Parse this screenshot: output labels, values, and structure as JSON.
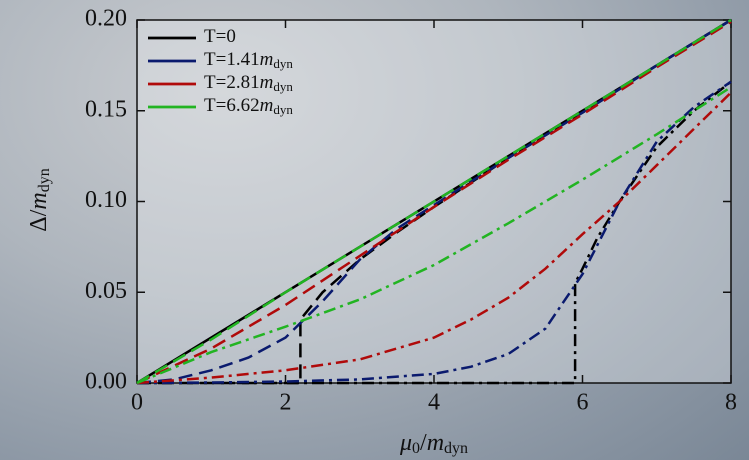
{
  "chart_data": {
    "type": "line",
    "xlabel": [
      "μ",
      "0",
      "/",
      "m",
      "dyn"
    ],
    "ylabel": [
      "Δ/",
      "m",
      "dyn"
    ],
    "xlim": [
      0,
      8
    ],
    "xticks": [
      0,
      2,
      4,
      6,
      8
    ],
    "ylim": [
      0,
      0.2
    ],
    "yticks": [
      {
        "value": 0,
        "label": "0.00"
      },
      {
        "value": 0.05,
        "label": "0.05"
      },
      {
        "value": 0.1,
        "label": "0.10"
      },
      {
        "value": 0.15,
        "label": "0.15"
      },
      {
        "value": 0.2,
        "label": "0.20"
      }
    ],
    "legend": "upper left",
    "series": [
      {
        "name": [
          "T=0"
        ],
        "color": "#000000",
        "curves": [
          {
            "dash": "solid",
            "x": [
              0,
              8
            ],
            "values": [
              0,
              0.2
            ]
          },
          {
            "dash": "dashed",
            "x": [
              0,
              2.2,
              2.2,
              2.5,
              3,
              3.5,
              4,
              5,
              6,
              7,
              8
            ],
            "values": [
              0,
              0,
              0.035,
              0.05,
              0.068,
              0.083,
              0.097,
              0.124,
              0.149,
              0.175,
              0.2
            ]
          },
          {
            "dash": "dashdot",
            "x": [
              0,
              5.9,
              5.9,
              6,
              6.2,
              6.5,
              7,
              7.5,
              8
            ],
            "values": [
              0,
              0,
              0.055,
              0.063,
              0.08,
              0.1,
              0.13,
              0.15,
              0.166
            ]
          }
        ]
      },
      {
        "name": [
          "T=1.41",
          "m",
          "dyn"
        ],
        "color": "#0a1a6e",
        "curves": [
          {
            "dash": "dashed",
            "x": [
              0,
              0.5,
              1,
              1.5,
              2,
              2.5,
              3,
              3.5,
              4,
              5,
              6,
              7,
              8
            ],
            "values": [
              0,
              0.002,
              0.007,
              0.014,
              0.025,
              0.045,
              0.068,
              0.085,
              0.098,
              0.124,
              0.149,
              0.175,
              0.2
            ]
          },
          {
            "dash": "dashdot",
            "x": [
              0,
              1,
              2,
              3,
              4,
              4.5,
              5,
              5.5,
              6,
              6.5,
              7,
              7.5,
              8
            ],
            "values": [
              0,
              0.0003,
              0.0008,
              0.002,
              0.005,
              0.009,
              0.016,
              0.03,
              0.06,
              0.1,
              0.133,
              0.152,
              0.166
            ]
          }
        ]
      },
      {
        "name": [
          "T=2.81",
          "m",
          "dyn"
        ],
        "color": "#b00a0a",
        "curves": [
          {
            "dash": "dashed",
            "x": [
              0,
              1,
              2,
              3,
              4,
              5,
              6,
              7,
              8
            ],
            "values": [
              0,
              0.019,
              0.043,
              0.07,
              0.097,
              0.123,
              0.148,
              0.174,
              0.199
            ]
          },
          {
            "dash": "dashdot",
            "x": [
              0,
              1,
              2,
              3,
              4,
              4.5,
              5,
              5.5,
              6,
              6.5,
              7,
              7.5,
              8
            ],
            "values": [
              0,
              0.003,
              0.007,
              0.013,
              0.025,
              0.035,
              0.047,
              0.063,
              0.082,
              0.1,
              0.12,
              0.14,
              0.16
            ]
          }
        ]
      },
      {
        "name": [
          "T=6.62",
          "m",
          "dyn"
        ],
        "color": "#22b422",
        "curves": [
          {
            "dash": "dashed",
            "x": [
              0,
              1,
              2,
              3,
              4,
              5,
              6,
              7,
              8
            ],
            "values": [
              0,
              0.024,
              0.05,
              0.075,
              0.1,
              0.125,
              0.15,
              0.175,
              0.2
            ]
          },
          {
            "dash": "dashdot",
            "x": [
              0,
              1,
              2,
              3,
              4,
              5,
              6,
              7,
              8
            ],
            "values": [
              0,
              0.017,
              0.031,
              0.046,
              0.065,
              0.088,
              0.112,
              0.137,
              0.163
            ]
          }
        ]
      }
    ]
  }
}
